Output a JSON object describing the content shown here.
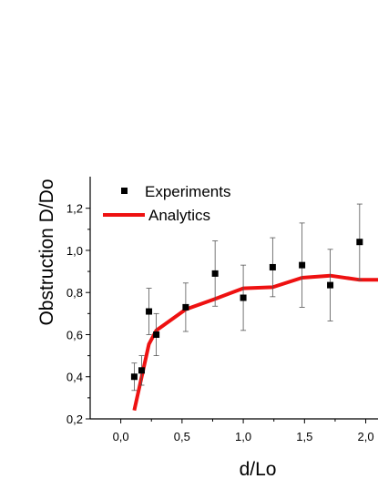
{
  "chart_data": {
    "type": "scatter",
    "xlabel": "d/Lo",
    "ylabel": "Obstruction D/Do",
    "xlim": [
      -0.25,
      2.1
    ],
    "ylim": [
      0.2,
      1.35
    ],
    "x_ticks": [
      "0,0",
      "0,5",
      "1,0",
      "1,5",
      "2,0"
    ],
    "x_tick_values": [
      0.0,
      0.5,
      1.0,
      1.5,
      2.0
    ],
    "y_ticks": [
      "0,2",
      "0,4",
      "0,6",
      "0,8",
      "1,0",
      "1,2"
    ],
    "y_tick_values": [
      0.2,
      0.4,
      0.6,
      0.8,
      1.0,
      1.2
    ],
    "legend_position": "top-left",
    "series": [
      {
        "name": "Experiments",
        "kind": "scatter-errorbar",
        "color": "#000000",
        "points": [
          {
            "x": 0.11,
            "y": 0.4,
            "err": 0.065
          },
          {
            "x": 0.17,
            "y": 0.43,
            "err": 0.07
          },
          {
            "x": 0.23,
            "y": 0.71,
            "err": 0.11
          },
          {
            "x": 0.29,
            "y": 0.6,
            "err": 0.1
          },
          {
            "x": 0.53,
            "y": 0.73,
            "err": 0.115
          },
          {
            "x": 0.77,
            "y": 0.89,
            "err": 0.155
          },
          {
            "x": 1.0,
            "y": 0.775,
            "err": 0.155
          },
          {
            "x": 1.24,
            "y": 0.92,
            "err": 0.14
          },
          {
            "x": 1.48,
            "y": 0.93,
            "err": 0.2
          },
          {
            "x": 1.71,
            "y": 0.835,
            "err": 0.17
          },
          {
            "x": 1.95,
            "y": 1.04,
            "err": 0.18
          }
        ]
      },
      {
        "name": "Analytics",
        "kind": "line",
        "color": "#ee1111",
        "x": [
          0.11,
          0.23,
          0.29,
          0.53,
          0.77,
          1.0,
          1.24,
          1.48,
          1.71,
          1.95,
          2.1
        ],
        "y": [
          0.24,
          0.555,
          0.62,
          0.72,
          0.77,
          0.82,
          0.825,
          0.87,
          0.88,
          0.86,
          0.86
        ]
      }
    ]
  }
}
